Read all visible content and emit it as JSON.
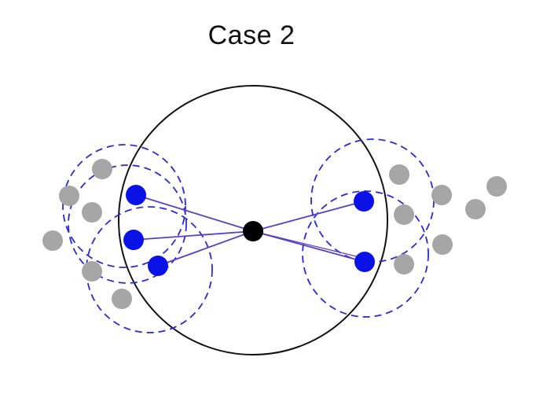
{
  "title": "Case 2",
  "colors": {
    "background": "#ffffff",
    "outer_circle": "#111111",
    "center_node": "#000000",
    "selected_node": "#0a12e6",
    "neighborhood_dashed": "#2a2ad8",
    "edge": "#5a3fc8",
    "other_node": "#a6a6a6"
  }
}
